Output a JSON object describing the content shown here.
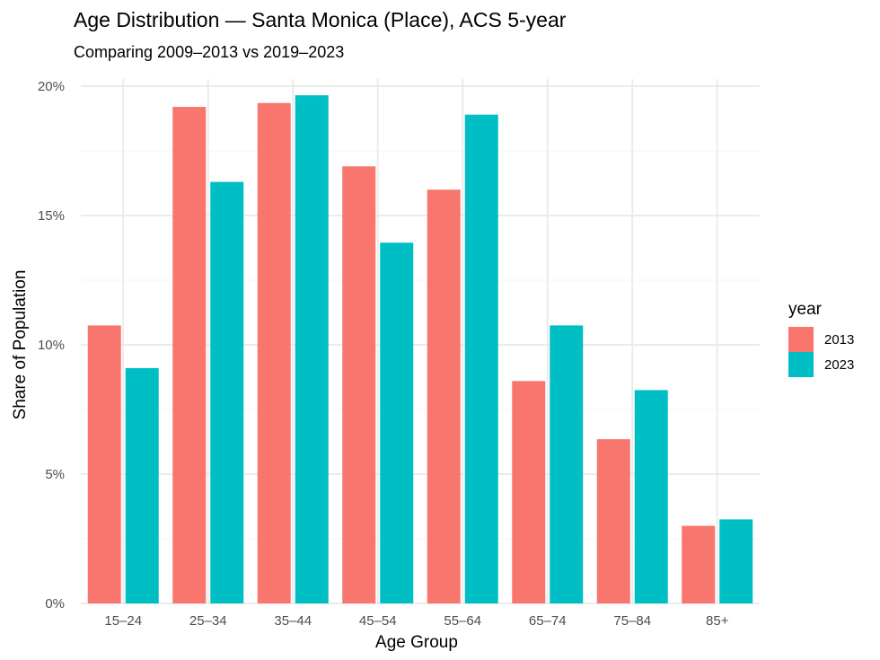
{
  "chart_data": {
    "type": "bar",
    "title": "Age Distribution — Santa Monica (Place), ACS 5-year",
    "subtitle": "Comparing 2009–2013 vs 2019–2023",
    "xlabel": "Age Group",
    "ylabel": "Share of Population",
    "ylim": [
      0,
      20
    ],
    "yticks": [
      0,
      5,
      10,
      15,
      20
    ],
    "ytick_labels": [
      "0%",
      "5%",
      "10%",
      "15%",
      "20%"
    ],
    "grid": true,
    "legend_title": "year",
    "legend_position": "right",
    "categories": [
      "15–24",
      "25–34",
      "35–44",
      "45–54",
      "55–64",
      "65–74",
      "75–84",
      "85+"
    ],
    "series": [
      {
        "name": "2013",
        "color": "#F8766D",
        "values": [
          10.75,
          19.2,
          19.35,
          16.9,
          16.0,
          8.6,
          6.35,
          3.0
        ]
      },
      {
        "name": "2023",
        "color": "#00BFC4",
        "values": [
          9.1,
          16.3,
          19.65,
          13.95,
          18.9,
          10.75,
          8.25,
          3.25
        ]
      }
    ]
  }
}
